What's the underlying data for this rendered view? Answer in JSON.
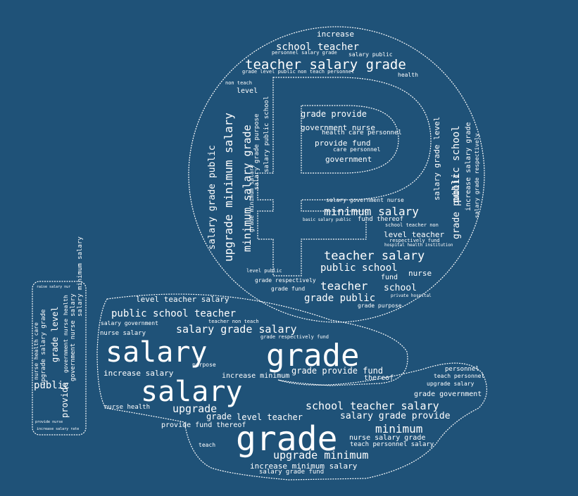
{
  "colors": {
    "background": "#1f5278",
    "text": "#ffffff",
    "outline": "#ffffff"
  },
  "icon": "ruble-coin-on-hand",
  "words": [
    "increase",
    "school teacher",
    "salary public",
    "personnel salary grade",
    "teacher salary grade",
    "grade level public",
    "non teach personnel",
    "health",
    "non teach",
    "level",
    "grade provide",
    "government nurse",
    "health care personnel",
    "provide fund",
    "care personnel",
    "government",
    "salary grade public",
    "upgrade minimum salary",
    "minimum salary grade",
    "grade minimum salary",
    "salary grade purpose",
    "salary public school",
    "salary grade level",
    "public school",
    "increase salary grade",
    "salary grade respectively",
    "grade public",
    "salary government nurse",
    "minimum salary",
    "fund thereof",
    "basic salary public",
    "school teacher non",
    "level teacher",
    "respectively fund",
    "hospital health institution",
    "teacher salary",
    "public school",
    "nurse",
    "fund",
    "level public",
    "grade respectively",
    "teacher",
    "school",
    "grade fund",
    "grade public",
    "grade purpose",
    "private hospital",
    "level teacher salary",
    "public school teacher",
    "salary government",
    "teacher non teach",
    "salary grade salary",
    "nurse salary",
    "grade respectively fund",
    "salary",
    "grade",
    "grade provide fund",
    "increase salary",
    "increase minimum",
    "thereof",
    "purpose",
    "salary",
    "upgrade",
    "school teacher salary",
    "salary grade provide",
    "grade",
    "level teacher",
    "minimum",
    "grade",
    "nurse salary grade",
    "teach personnel salary",
    "upgrade minimum",
    "increase minimum salary",
    "salary grade fund",
    "personnel",
    "teach personnel",
    "grade government",
    "upgrade salary",
    "nurse health",
    "provide fund thereof",
    "teach",
    "nurse health care",
    "upgrade salary grade",
    "grade level",
    "government nurse health",
    "public",
    "provide",
    "government nurse salary",
    "salary minimum salary",
    "provide nurse",
    "increase salary rate",
    "raise salary nur"
  ]
}
